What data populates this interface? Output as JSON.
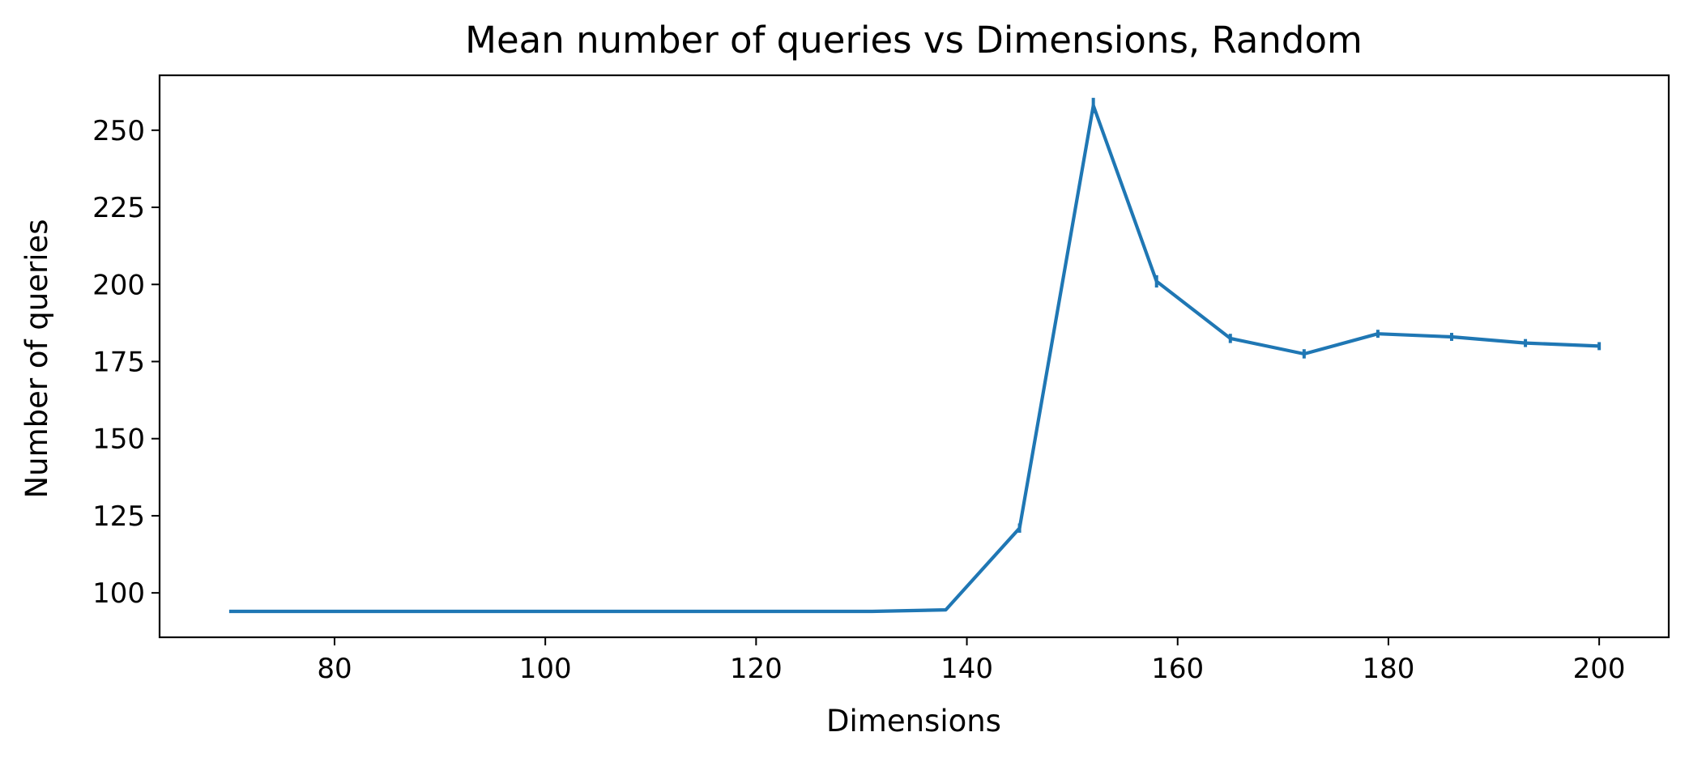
{
  "chart_data": {
    "type": "line",
    "title": "Mean number of queries vs Dimensions, Random",
    "xlabel": "Dimensions",
    "ylabel": "Number of queries",
    "xlim": [
      63.4,
      206.6
    ],
    "ylim": [
      85.6,
      267.8
    ],
    "xticks": [
      80,
      100,
      120,
      140,
      160,
      180,
      200
    ],
    "yticks": [
      100,
      125,
      150,
      175,
      200,
      225,
      250
    ],
    "grid": false,
    "legend": "none",
    "series_color": "#1f77b4",
    "series": [
      {
        "x": [
          70,
          77,
          84,
          91,
          98,
          104,
          111,
          118,
          125,
          131,
          138,
          145,
          152,
          158,
          165,
          172,
          179,
          186,
          193,
          200
        ],
        "y": [
          94,
          94,
          94,
          94,
          94,
          94,
          94,
          94,
          94,
          94,
          94.5,
          121,
          258,
          201,
          182.5,
          177.5,
          184,
          183,
          181,
          180
        ],
        "error": [
          0,
          0,
          0,
          0,
          0,
          0,
          0,
          0,
          0,
          0,
          0,
          1.5,
          2.5,
          2,
          1.5,
          1.5,
          1.3,
          1.3,
          1.3,
          1.3
        ]
      }
    ]
  }
}
